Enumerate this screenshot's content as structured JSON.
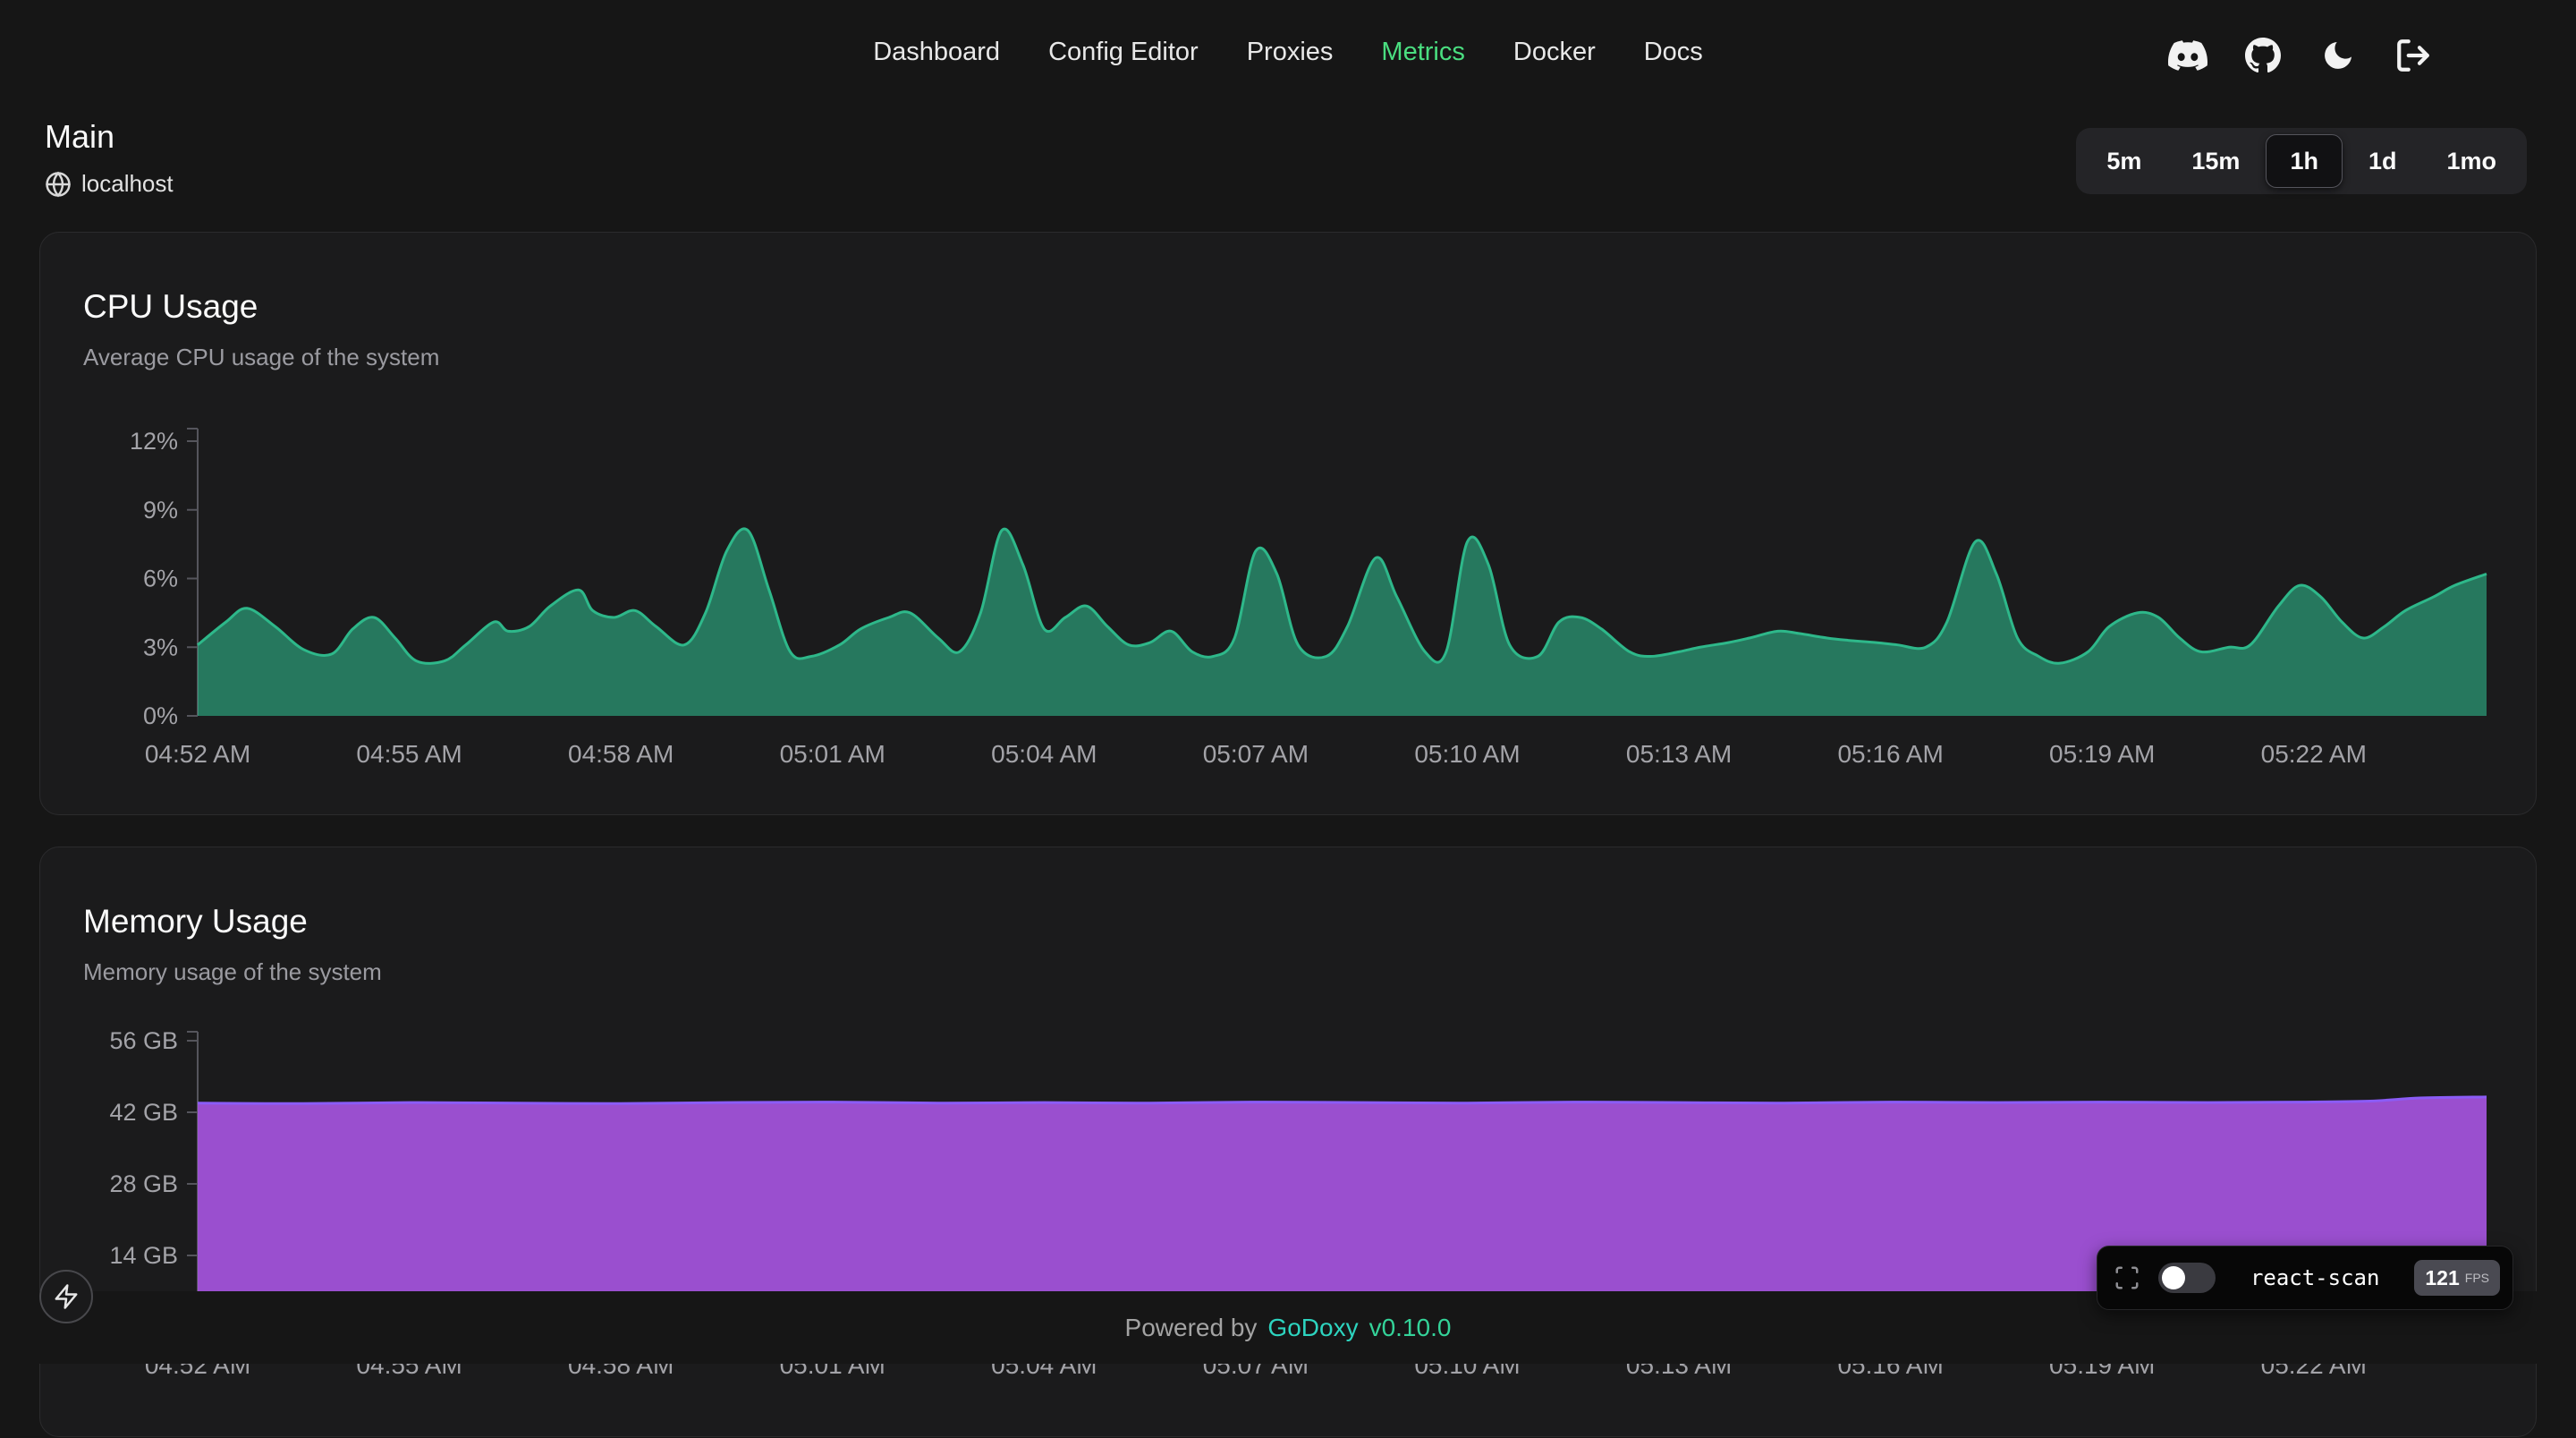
{
  "nav": {
    "items": [
      {
        "label": "Dashboard",
        "active": false
      },
      {
        "label": "Config Editor",
        "active": false
      },
      {
        "label": "Proxies",
        "active": false
      },
      {
        "label": "Metrics",
        "active": true
      },
      {
        "label": "Docker",
        "active": false
      },
      {
        "label": "Docs",
        "active": false
      }
    ]
  },
  "header_icons": [
    "discord",
    "github",
    "dark-mode",
    "logout"
  ],
  "page": {
    "title": "Main",
    "host": "localhost"
  },
  "time_range": {
    "options": [
      "5m",
      "15m",
      "1h",
      "1d",
      "1mo"
    ],
    "selected": "1h"
  },
  "footer": {
    "powered_by": "Powered by",
    "brand": "GoDoxy",
    "version": "v0.10.0"
  },
  "react_scan": {
    "label": "react-scan",
    "fps": "121",
    "fps_unit": "FPS",
    "toggle_on": false
  },
  "colors": {
    "accent_green": "#4ade80",
    "cpu_fill": "#2eb88a",
    "cpu_stroke": "#2eb88a",
    "mem_fill": "#a152d9",
    "mem_stroke": "#8b5cf6",
    "axis": "#55555c",
    "tick_label": "#a3a3a8"
  },
  "chart_data": [
    {
      "type": "area",
      "title": "CPU Usage",
      "subtitle": "Average CPU usage of the system",
      "unit": "%",
      "y_ticks": [
        0,
        3,
        6,
        9,
        12
      ],
      "y_tick_labels": [
        "0%",
        "3%",
        "6%",
        "9%",
        "12%"
      ],
      "x_tick_labels": [
        "04:52 AM",
        "04:55 AM",
        "04:58 AM",
        "05:01 AM",
        "05:04 AM",
        "05:07 AM",
        "05:10 AM",
        "05:13 AM",
        "05:16 AM",
        "05:19 AM",
        "05:22 AM"
      ],
      "x_tick_minutes": [
        0,
        3,
        6,
        9,
        12,
        15,
        18,
        21,
        24,
        27,
        30
      ],
      "x_domain": [
        0,
        32.45
      ],
      "stroke": "#2eb88a",
      "fill": "#2eb88a",
      "fill_opacity": 0.6,
      "points": [
        [
          0,
          3.1
        ],
        [
          0.4,
          4.1
        ],
        [
          0.7,
          4.7
        ],
        [
          1.1,
          3.9
        ],
        [
          1.5,
          2.9
        ],
        [
          1.9,
          2.7
        ],
        [
          2.2,
          3.8
        ],
        [
          2.5,
          4.3
        ],
        [
          2.8,
          3.4
        ],
        [
          3.1,
          2.4
        ],
        [
          3.5,
          2.4
        ],
        [
          3.8,
          3.1
        ],
        [
          4.2,
          4.1
        ],
        [
          4.4,
          3.7
        ],
        [
          4.7,
          3.9
        ],
        [
          5.0,
          4.8
        ],
        [
          5.4,
          5.5
        ],
        [
          5.6,
          4.6
        ],
        [
          5.9,
          4.3
        ],
        [
          6.2,
          4.6
        ],
        [
          6.5,
          3.9
        ],
        [
          6.9,
          3.1
        ],
        [
          7.2,
          4.5
        ],
        [
          7.5,
          7.2
        ],
        [
          7.8,
          8.1
        ],
        [
          8.1,
          5.5
        ],
        [
          8.4,
          2.8
        ],
        [
          8.7,
          2.6
        ],
        [
          9.1,
          3.1
        ],
        [
          9.4,
          3.8
        ],
        [
          9.8,
          4.3
        ],
        [
          10.1,
          4.5
        ],
        [
          10.5,
          3.4
        ],
        [
          10.8,
          2.8
        ],
        [
          11.1,
          4.5
        ],
        [
          11.4,
          8.1
        ],
        [
          11.7,
          6.6
        ],
        [
          12.0,
          3.8
        ],
        [
          12.3,
          4.3
        ],
        [
          12.6,
          4.8
        ],
        [
          12.9,
          3.9
        ],
        [
          13.2,
          3.1
        ],
        [
          13.5,
          3.2
        ],
        [
          13.8,
          3.7
        ],
        [
          14.1,
          2.8
        ],
        [
          14.4,
          2.6
        ],
        [
          14.7,
          3.4
        ],
        [
          15.0,
          7.2
        ],
        [
          15.3,
          6.2
        ],
        [
          15.6,
          3.1
        ],
        [
          16.0,
          2.6
        ],
        [
          16.3,
          3.9
        ],
        [
          16.7,
          6.9
        ],
        [
          17.0,
          5.2
        ],
        [
          17.4,
          2.8
        ],
        [
          17.7,
          2.8
        ],
        [
          18.0,
          7.6
        ],
        [
          18.3,
          6.6
        ],
        [
          18.6,
          3.1
        ],
        [
          19.0,
          2.6
        ],
        [
          19.3,
          4.1
        ],
        [
          19.6,
          4.3
        ],
        [
          19.9,
          3.8
        ],
        [
          20.3,
          2.8
        ],
        [
          20.6,
          2.6
        ],
        [
          21.0,
          2.8
        ],
        [
          21.3,
          3.0
        ],
        [
          21.7,
          3.2
        ],
        [
          22.0,
          3.4
        ],
        [
          22.4,
          3.7
        ],
        [
          22.7,
          3.6
        ],
        [
          23.1,
          3.4
        ],
        [
          23.4,
          3.3
        ],
        [
          23.8,
          3.2
        ],
        [
          24.1,
          3.1
        ],
        [
          24.5,
          3.0
        ],
        [
          24.8,
          4.1
        ],
        [
          25.2,
          7.6
        ],
        [
          25.5,
          6.2
        ],
        [
          25.8,
          3.4
        ],
        [
          26.1,
          2.6
        ],
        [
          26.4,
          2.3
        ],
        [
          26.8,
          2.8
        ],
        [
          27.1,
          3.9
        ],
        [
          27.5,
          4.5
        ],
        [
          27.8,
          4.3
        ],
        [
          28.1,
          3.4
        ],
        [
          28.4,
          2.8
        ],
        [
          28.8,
          3.0
        ],
        [
          29.1,
          3.1
        ],
        [
          29.5,
          4.8
        ],
        [
          29.8,
          5.7
        ],
        [
          30.1,
          5.2
        ],
        [
          30.4,
          4.1
        ],
        [
          30.7,
          3.4
        ],
        [
          31.0,
          3.9
        ],
        [
          31.3,
          4.6
        ],
        [
          31.7,
          5.2
        ],
        [
          32.0,
          5.7
        ],
        [
          32.45,
          6.2
        ]
      ]
    },
    {
      "type": "area",
      "title": "Memory Usage",
      "subtitle": "Memory usage of the system",
      "unit": "GB",
      "y_ticks": [
        14,
        28,
        42,
        56
      ],
      "y_tick_labels": [
        "14 GB",
        "28 GB",
        "42 GB",
        "56 GB"
      ],
      "x_tick_labels": [
        "04:52 AM",
        "04:55 AM",
        "04:58 AM",
        "05:01 AM",
        "05:04 AM",
        "05:07 AM",
        "05:10 AM",
        "05:13 AM",
        "05:16 AM",
        "05:19 AM",
        "05:22 AM"
      ],
      "x_tick_minutes": [
        0,
        3,
        6,
        9,
        12,
        15,
        18,
        21,
        24,
        27,
        30
      ],
      "x_domain": [
        0,
        32.45
      ],
      "stroke": "#8b5cf6",
      "fill": "#a152d9",
      "fill_opacity": 0.95,
      "points": [
        [
          0,
          43.8
        ],
        [
          1.5,
          43.7
        ],
        [
          3,
          43.9
        ],
        [
          4.5,
          43.8
        ],
        [
          6,
          43.7
        ],
        [
          7.5,
          43.9
        ],
        [
          9,
          44.0
        ],
        [
          10.5,
          43.8
        ],
        [
          12,
          43.9
        ],
        [
          13.5,
          43.8
        ],
        [
          15,
          44.0
        ],
        [
          16.5,
          43.9
        ],
        [
          18,
          43.8
        ],
        [
          19.5,
          44.0
        ],
        [
          21,
          43.9
        ],
        [
          22.5,
          43.8
        ],
        [
          24,
          44.0
        ],
        [
          25.5,
          43.9
        ],
        [
          27,
          44.0
        ],
        [
          28.5,
          43.9
        ],
        [
          29.8,
          44.0
        ],
        [
          30.8,
          44.2
        ],
        [
          31.5,
          44.8
        ],
        [
          32.45,
          45.0
        ]
      ]
    }
  ]
}
